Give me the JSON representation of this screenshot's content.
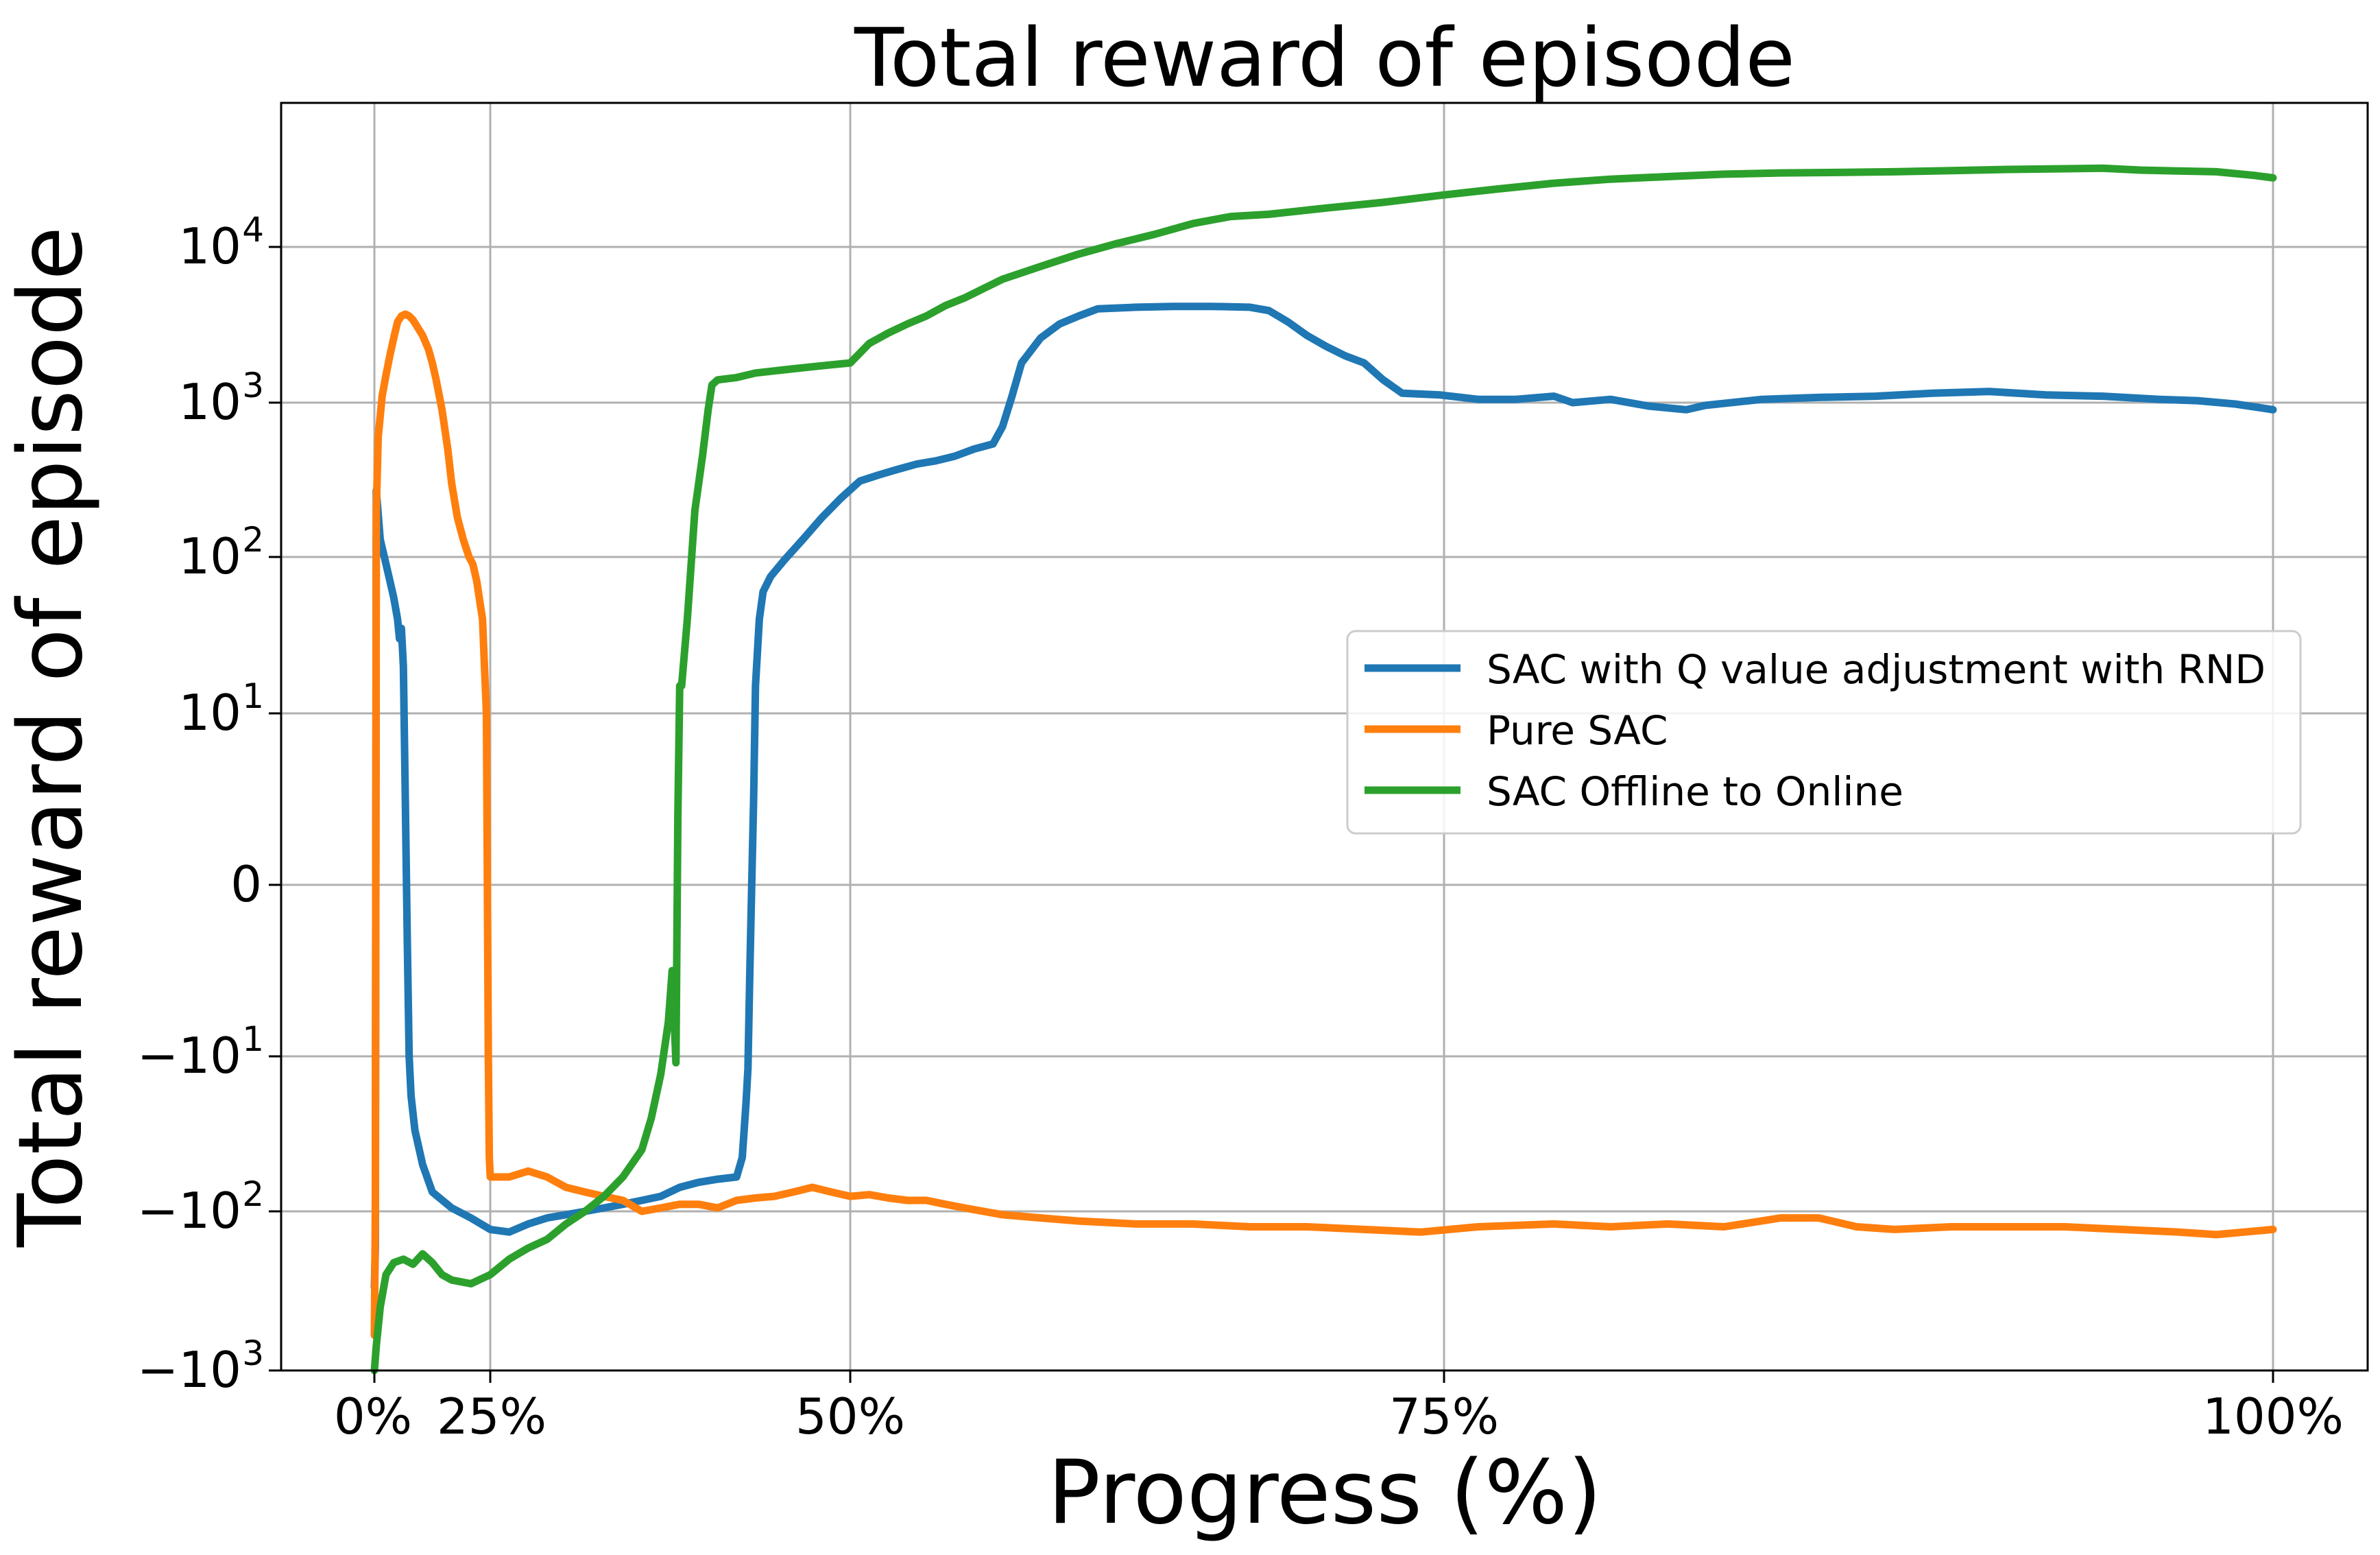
{
  "chart_data": {
    "type": "line",
    "title": "Total reward of episode",
    "xlabel": "Progress (%)",
    "ylabel": "Total reward of episode",
    "xlim": [
      -5,
      105
    ],
    "ylim": [
      -1000,
      80000
    ],
    "yscale": "symlog",
    "symlog_linthresh": 10,
    "grid": true,
    "legend_position": "center-right",
    "x_ticks": [
      {
        "value": 0,
        "label": "0%"
      },
      {
        "value": 6,
        "label": "25%"
      },
      {
        "value": 25,
        "label": "50%"
      },
      {
        "value": 56.2,
        "label": "75%"
      },
      {
        "value": 100,
        "label": "100%"
      }
    ],
    "y_ticks": [
      {
        "value": -1000,
        "base": "−10",
        "exp": "3"
      },
      {
        "value": -100,
        "base": "−10",
        "exp": "2"
      },
      {
        "value": -10,
        "base": "−10",
        "exp": "1"
      },
      {
        "value": 0,
        "base": "0",
        "exp": ""
      },
      {
        "value": 10,
        "base": "10",
        "exp": "1"
      },
      {
        "value": 100,
        "base": "10",
        "exp": "2"
      },
      {
        "value": 1000,
        "base": "10",
        "exp": "3"
      },
      {
        "value": 10000,
        "base": "10",
        "exp": "4"
      }
    ],
    "series": [
      {
        "name": "SAC with Q value adjustment with RND",
        "color": "#1f77b4",
        "points": [
          [
            0,
            -300
          ],
          [
            0.05,
            -170
          ],
          [
            0.1,
            270
          ],
          [
            0.3,
            130
          ],
          [
            0.7,
            80
          ],
          [
            1.0,
            55
          ],
          [
            1.2,
            40
          ],
          [
            1.3,
            30
          ],
          [
            1.4,
            35
          ],
          [
            1.5,
            20
          ],
          [
            1.6,
            5
          ],
          [
            1.7,
            -3
          ],
          [
            1.8,
            -10
          ],
          [
            1.9,
            -18
          ],
          [
            2.1,
            -30
          ],
          [
            2.5,
            -50
          ],
          [
            3,
            -75
          ],
          [
            4,
            -95
          ],
          [
            5,
            -110
          ],
          [
            6,
            -130
          ],
          [
            7,
            -135
          ],
          [
            8,
            -120
          ],
          [
            9,
            -110
          ],
          [
            10,
            -105
          ],
          [
            11,
            -100
          ],
          [
            12,
            -95
          ],
          [
            13,
            -90
          ],
          [
            14,
            -85
          ],
          [
            15,
            -80
          ],
          [
            16,
            -70
          ],
          [
            17,
            -65
          ],
          [
            18,
            -62
          ],
          [
            19,
            -60
          ],
          [
            19.3,
            -45
          ],
          [
            19.5,
            -20
          ],
          [
            19.6,
            -12
          ],
          [
            19.7,
            -5
          ],
          [
            19.8,
            0
          ],
          [
            19.9,
            5
          ],
          [
            20.0,
            15
          ],
          [
            20.2,
            40
          ],
          [
            20.4,
            60
          ],
          [
            20.8,
            75
          ],
          [
            21.5,
            95
          ],
          [
            22.5,
            130
          ],
          [
            23.5,
            180
          ],
          [
            24.5,
            240
          ],
          [
            25.5,
            310
          ],
          [
            26.5,
            340
          ],
          [
            27.5,
            370
          ],
          [
            28.5,
            400
          ],
          [
            29.5,
            420
          ],
          [
            30.5,
            450
          ],
          [
            31.5,
            500
          ],
          [
            32.5,
            540
          ],
          [
            33.0,
            700
          ],
          [
            33.5,
            1100
          ],
          [
            34.0,
            1800
          ],
          [
            35,
            2600
          ],
          [
            36,
            3200
          ],
          [
            37,
            3600
          ],
          [
            38,
            4000
          ],
          [
            40,
            4100
          ],
          [
            42,
            4150
          ],
          [
            44,
            4150
          ],
          [
            46,
            4100
          ],
          [
            47,
            3900
          ],
          [
            48,
            3300
          ],
          [
            49,
            2700
          ],
          [
            50,
            2300
          ],
          [
            51,
            2000
          ],
          [
            52,
            1800
          ],
          [
            53,
            1400
          ],
          [
            54,
            1150
          ],
          [
            56,
            1120
          ],
          [
            58,
            1050
          ],
          [
            60,
            1050
          ],
          [
            62,
            1100
          ],
          [
            63,
            1000
          ],
          [
            65,
            1050
          ],
          [
            67,
            950
          ],
          [
            69,
            900
          ],
          [
            70,
            960
          ],
          [
            73,
            1050
          ],
          [
            76,
            1080
          ],
          [
            79,
            1100
          ],
          [
            82,
            1150
          ],
          [
            85,
            1180
          ],
          [
            88,
            1120
          ],
          [
            91,
            1100
          ],
          [
            94,
            1050
          ],
          [
            96,
            1030
          ],
          [
            98,
            980
          ],
          [
            100,
            900
          ]
        ]
      },
      {
        "name": "Pure SAC",
        "color": "#ff7f0e",
        "points": [
          [
            0,
            -600
          ],
          [
            0.05,
            -100
          ],
          [
            0.1,
            200
          ],
          [
            0.2,
            600
          ],
          [
            0.4,
            1100
          ],
          [
            0.6,
            1500
          ],
          [
            0.8,
            2000
          ],
          [
            1.0,
            2600
          ],
          [
            1.2,
            3300
          ],
          [
            1.4,
            3600
          ],
          [
            1.6,
            3700
          ],
          [
            1.8,
            3600
          ],
          [
            2.0,
            3400
          ],
          [
            2.2,
            3100
          ],
          [
            2.5,
            2700
          ],
          [
            2.8,
            2200
          ],
          [
            3.0,
            1800
          ],
          [
            3.2,
            1400
          ],
          [
            3.5,
            900
          ],
          [
            3.8,
            500
          ],
          [
            4.0,
            300
          ],
          [
            4.3,
            180
          ],
          [
            4.6,
            130
          ],
          [
            4.9,
            100
          ],
          [
            5.1,
            90
          ],
          [
            5.3,
            70
          ],
          [
            5.6,
            40
          ],
          [
            5.8,
            10
          ],
          [
            5.9,
            -10
          ],
          [
            5.95,
            -45
          ],
          [
            6.0,
            -60
          ],
          [
            7,
            -60
          ],
          [
            8,
            -55
          ],
          [
            9,
            -60
          ],
          [
            10,
            -70
          ],
          [
            11,
            -75
          ],
          [
            12,
            -80
          ],
          [
            13,
            -85
          ],
          [
            14,
            -100
          ],
          [
            15,
            -95
          ],
          [
            16,
            -90
          ],
          [
            17,
            -90
          ],
          [
            18,
            -95
          ],
          [
            19,
            -85
          ],
          [
            20,
            -82
          ],
          [
            21,
            -80
          ],
          [
            22,
            -75
          ],
          [
            23,
            -70
          ],
          [
            24,
            -75
          ],
          [
            25,
            -80
          ],
          [
            26,
            -78
          ],
          [
            27,
            -82
          ],
          [
            28,
            -85
          ],
          [
            29,
            -85
          ],
          [
            30,
            -90
          ],
          [
            31,
            -95
          ],
          [
            32,
            -100
          ],
          [
            33,
            -105
          ],
          [
            35,
            -110
          ],
          [
            37,
            -115
          ],
          [
            40,
            -120
          ],
          [
            43,
            -120
          ],
          [
            46,
            -125
          ],
          [
            49,
            -125
          ],
          [
            52,
            -130
          ],
          [
            55,
            -135
          ],
          [
            58,
            -125
          ],
          [
            62,
            -120
          ],
          [
            65,
            -125
          ],
          [
            68,
            -120
          ],
          [
            71,
            -125
          ],
          [
            74,
            -110
          ],
          [
            76,
            -110
          ],
          [
            78,
            -125
          ],
          [
            80,
            -130
          ],
          [
            83,
            -125
          ],
          [
            86,
            -125
          ],
          [
            89,
            -125
          ],
          [
            92,
            -130
          ],
          [
            95,
            -135
          ],
          [
            97,
            -140
          ],
          [
            100,
            -130
          ]
        ]
      },
      {
        "name": "SAC Offline to Online",
        "color": "#2ca02c",
        "points": [
          [
            0,
            -1000
          ],
          [
            0.1,
            -700
          ],
          [
            0.3,
            -400
          ],
          [
            0.6,
            -250
          ],
          [
            1,
            -210
          ],
          [
            1.5,
            -200
          ],
          [
            2,
            -215
          ],
          [
            2.5,
            -185
          ],
          [
            3,
            -210
          ],
          [
            3.5,
            -250
          ],
          [
            4,
            -270
          ],
          [
            5,
            -285
          ],
          [
            6,
            -250
          ],
          [
            7,
            -200
          ],
          [
            8,
            -170
          ],
          [
            9,
            -150
          ],
          [
            10,
            -120
          ],
          [
            11,
            -100
          ],
          [
            12,
            -80
          ],
          [
            13,
            -60
          ],
          [
            14,
            -40
          ],
          [
            14.5,
            -25
          ],
          [
            15,
            -13
          ],
          [
            15.4,
            -8
          ],
          [
            15.6,
            -5
          ],
          [
            15.8,
            -11
          ],
          [
            15.9,
            4
          ],
          [
            16.0,
            15
          ],
          [
            16.1,
            15
          ],
          [
            16.4,
            40
          ],
          [
            16.8,
            200
          ],
          [
            17.2,
            450
          ],
          [
            17.5,
            900
          ],
          [
            17.7,
            1300
          ],
          [
            18,
            1400
          ],
          [
            19,
            1450
          ],
          [
            20,
            1550
          ],
          [
            21,
            1600
          ],
          [
            22,
            1650
          ],
          [
            23,
            1700
          ],
          [
            24,
            1750
          ],
          [
            25,
            1800
          ],
          [
            26,
            2400
          ],
          [
            27,
            2800
          ],
          [
            28,
            3200
          ],
          [
            29,
            3600
          ],
          [
            30,
            4200
          ],
          [
            31,
            4700
          ],
          [
            32,
            5400
          ],
          [
            33,
            6200
          ],
          [
            35,
            7500
          ],
          [
            37,
            9000
          ],
          [
            39,
            10500
          ],
          [
            41,
            12000
          ],
          [
            43,
            14000
          ],
          [
            45,
            15500
          ],
          [
            47,
            16000
          ],
          [
            50,
            17500
          ],
          [
            53,
            19000
          ],
          [
            56,
            21000
          ],
          [
            59,
            23000
          ],
          [
            62,
            25000
          ],
          [
            65,
            26500
          ],
          [
            68,
            27500
          ],
          [
            71,
            28500
          ],
          [
            74,
            29000
          ],
          [
            77,
            29200
          ],
          [
            80,
            29500
          ],
          [
            83,
            30000
          ],
          [
            86,
            30500
          ],
          [
            89,
            30800
          ],
          [
            91,
            31000
          ],
          [
            93,
            30200
          ],
          [
            95,
            29800
          ],
          [
            97,
            29500
          ],
          [
            99,
            28000
          ],
          [
            100,
            27000
          ]
        ]
      }
    ]
  }
}
